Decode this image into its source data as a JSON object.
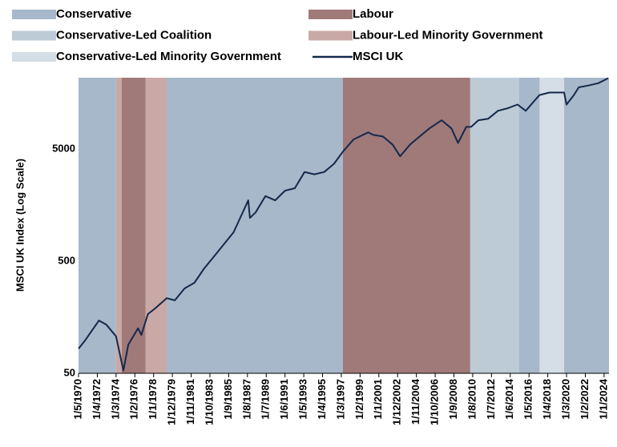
{
  "chart_data": {
    "type": "line",
    "ylabel": "MSCI UK Index (Log Scale)",
    "log_y": true,
    "ylim": [
      50,
      21700
    ],
    "yticks": [
      50,
      500,
      5000
    ],
    "xlim": [
      "1/5/1970",
      "1/7/2024"
    ],
    "xticks": [
      "1/5/1970",
      "1/4/1972",
      "1/3/1974",
      "1/2/1976",
      "1/1/1978",
      "1/12/1979",
      "1/11/1981",
      "1/10/1983",
      "1/9/1985",
      "1/8/1987",
      "1/7/1989",
      "1/6/1991",
      "1/5/1993",
      "1/4/1995",
      "1/3/1997",
      "1/2/1999",
      "1/1/2001",
      "1/12/2002",
      "1/11/2004",
      "1/10/2006",
      "1/9/2008",
      "1/8/2010",
      "1/7/2012",
      "1/6/2014",
      "1/5/2016",
      "1/4/2018",
      "1/3/2020",
      "1/2/2022",
      "1/1/2024"
    ],
    "shading": [
      {
        "name": "Conservative",
        "color": "#a6b8c9",
        "spans": [
          [
            "1/5/1970",
            "1/3/1974"
          ],
          [
            "1/5/1979",
            "1/5/1997"
          ],
          [
            "1/5/2015",
            "1/6/2017"
          ],
          [
            "1/12/2019",
            "1/7/2024"
          ]
        ]
      },
      {
        "name": "Labour",
        "color": "#a07a79",
        "spans": [
          [
            "1/10/1974",
            "1/3/1977"
          ],
          [
            "1/5/1997",
            "1/5/2010"
          ]
        ]
      },
      {
        "name": "Conservative-Led Coalition",
        "color": "#bccbd6",
        "spans": [
          [
            "1/5/2010",
            "1/5/2015"
          ]
        ]
      },
      {
        "name": "Labour-Led Minority Government",
        "color": "#c9a9a6",
        "spans": [
          [
            "1/3/1974",
            "1/10/1974"
          ],
          [
            "1/3/1977",
            "1/5/1979"
          ]
        ]
      },
      {
        "name": "Conservative-Led Minority Government",
        "color": "#d5dde6",
        "spans": [
          [
            "1/6/2017",
            "1/12/2019"
          ]
        ]
      }
    ],
    "series": [
      {
        "name": "MSCI UK",
        "color": "#14284b",
        "x": [
          "1/5/1970",
          "1/1/1971",
          "1/6/1972",
          "1/3/1973",
          "1/3/1974",
          "1/12/1974",
          "1/6/1975",
          "1/6/1976",
          "1/10/1976",
          "1/6/1977",
          "1/3/1978",
          "1/5/1979",
          "1/3/1980",
          "1/3/1981",
          "1/3/1982",
          "1/3/1983",
          "1/3/1984",
          "1/3/1985",
          "1/3/1986",
          "1/9/1987",
          "1/11/1987",
          "1/6/1988",
          "1/6/1989",
          "1/6/1990",
          "1/6/1991",
          "1/6/1992",
          "1/6/1993",
          "1/6/1994",
          "1/6/1995",
          "1/6/1996",
          "1/5/1997",
          "1/6/1998",
          "1/12/1999",
          "1/6/2000",
          "1/6/2001",
          "1/6/2002",
          "1/3/2003",
          "1/3/2004",
          "1/3/2005",
          "1/3/2006",
          "1/6/2007",
          "1/6/2008",
          "1/2/2009",
          "1/12/2009",
          "1/6/2010",
          "1/3/2011",
          "1/3/2012",
          "1/3/2013",
          "1/3/2014",
          "1/3/2015",
          "1/1/2016",
          "1/12/2016",
          "1/6/2017",
          "1/6/2018",
          "1/12/2019",
          "1/3/2020",
          "1/12/2020",
          "1/6/2021",
          "1/6/2022",
          "1/6/2023",
          "1/6/2024"
        ],
        "values": [
          83,
          98,
          148,
          136,
          107,
          53,
          90,
          126,
          110,
          169,
          190,
          234,
          224,
          286,
          321,
          431,
          552,
          708,
          906,
          1746,
          1217,
          1363,
          1905,
          1746,
          2130,
          2240,
          3125,
          2980,
          3125,
          3700,
          4760,
          6100,
          7060,
          6700,
          6480,
          5470,
          4315,
          5470,
          6480,
          7660,
          9050,
          7660,
          5680,
          7900,
          7900,
          9050,
          9350,
          11000,
          11600,
          12500,
          11000,
          13600,
          15200,
          16000,
          16000,
          12500,
          15200,
          17800,
          18500,
          19400,
          21500
        ]
      }
    ]
  }
}
